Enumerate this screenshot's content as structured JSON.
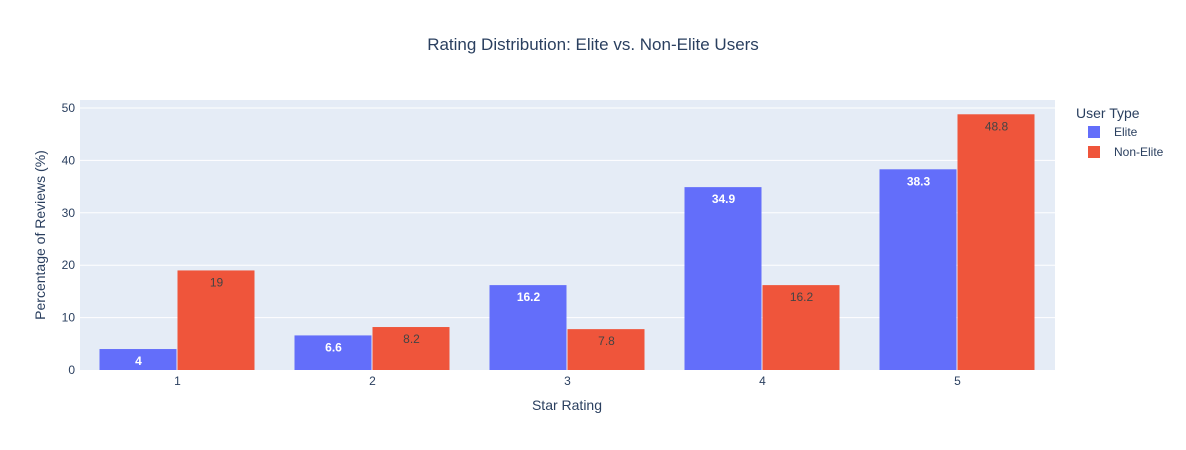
{
  "chart_data": {
    "type": "bar",
    "title": "Rating Distribution: Elite vs. Non-Elite Users",
    "xlabel": "Star Rating",
    "ylabel": "Percentage of Reviews (%)",
    "categories": [
      "1",
      "2",
      "3",
      "4",
      "5"
    ],
    "ylim": [
      0,
      50
    ],
    "yticks": [
      0,
      10,
      20,
      30,
      40,
      50
    ],
    "grid": true,
    "legend_title": "User Type",
    "legend_position": "right",
    "series": [
      {
        "name": "Elite",
        "color": "#636efa",
        "label_color": "#ffffff",
        "values": [
          4,
          6.6,
          16.2,
          34.9,
          38.3
        ],
        "labels": [
          "4",
          "6.6",
          "16.2",
          "34.9",
          "38.3"
        ]
      },
      {
        "name": "Non-Elite",
        "color": "#ef553b",
        "label_color": "#444444",
        "values": [
          19,
          8.2,
          7.8,
          16.2,
          48.8
        ],
        "labels": [
          "19",
          "8.2",
          "7.8",
          "16.2",
          "48.8"
        ]
      }
    ]
  },
  "colors": {
    "plot_bg": "#e5ecf6",
    "grid": "#ffffff",
    "text": "#2a3f5f"
  }
}
